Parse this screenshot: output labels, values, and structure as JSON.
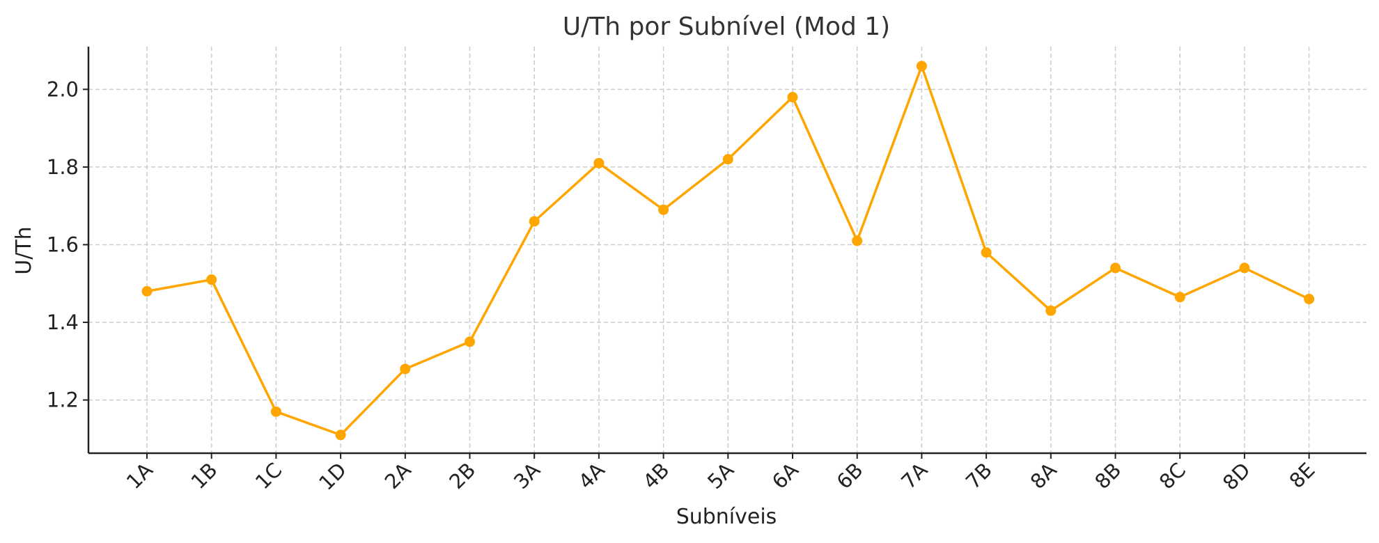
{
  "chart_data": {
    "type": "line",
    "title": "U/Th por Subnível (Mod 1)",
    "xlabel": "Subníveis",
    "ylabel": "U/Th",
    "categories": [
      "1A",
      "1B",
      "1C",
      "1D",
      "2A",
      "2B",
      "3A",
      "4A",
      "4B",
      "5A",
      "6A",
      "6B",
      "7A",
      "7B",
      "8A",
      "8B",
      "8C",
      "8D",
      "8E"
    ],
    "series": [
      {
        "values": [
          1.48,
          1.51,
          1.17,
          1.11,
          1.28,
          1.35,
          1.66,
          1.81,
          1.69,
          1.82,
          1.98,
          1.61,
          2.06,
          1.58,
          1.43,
          1.54,
          1.465,
          1.54,
          1.46
        ],
        "color": "#FFA500"
      }
    ],
    "yticks": [
      "1.2",
      "1.4",
      "1.6",
      "1.8",
      "2.0"
    ],
    "ylim": [
      1.063,
      2.11
    ],
    "grid": true,
    "legend": "none"
  }
}
